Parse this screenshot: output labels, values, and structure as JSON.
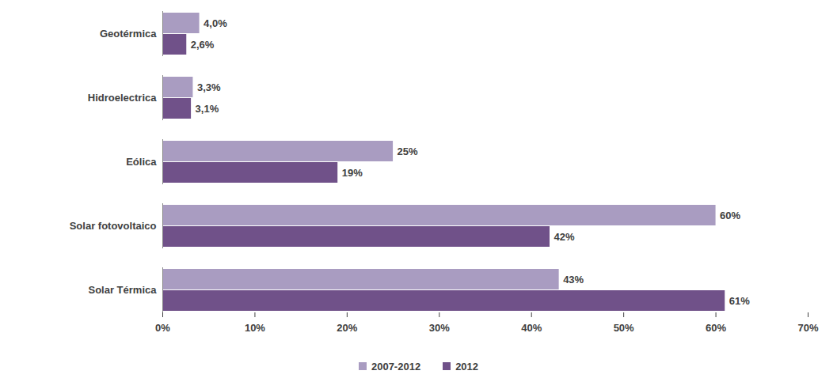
{
  "chart_data": {
    "type": "bar",
    "orientation": "horizontal",
    "data_labels": true,
    "grid": false,
    "legend": "bottom",
    "categories": [
      "Geotérmica",
      "Hidroelectrica",
      "Eólica",
      "Solar fotovoltaico",
      "Solar Térmica"
    ],
    "series": [
      {
        "name": "2007-2012",
        "color": "#a99cc1",
        "values": [
          4.0,
          3.3,
          25,
          60,
          43
        ],
        "value_labels": [
          "4,0%",
          "3,3%",
          "25%",
          "60%",
          "43%"
        ]
      },
      {
        "name": "2012",
        "color": "#705189",
        "values": [
          2.6,
          3.1,
          19,
          42,
          61
        ],
        "value_labels": [
          "2,6%",
          "3,1%",
          "19%",
          "42%",
          "61%"
        ]
      }
    ],
    "xlim": [
      0,
      70
    ],
    "xticks": [
      {
        "value": 0,
        "label": "0%"
      },
      {
        "value": 10,
        "label": "10%"
      },
      {
        "value": 20,
        "label": "20%"
      },
      {
        "value": 30,
        "label": "30%"
      },
      {
        "value": 40,
        "label": "40%"
      },
      {
        "value": 50,
        "label": "50%"
      },
      {
        "value": 60,
        "label": "60%"
      },
      {
        "value": 70,
        "label": "70%"
      }
    ]
  }
}
